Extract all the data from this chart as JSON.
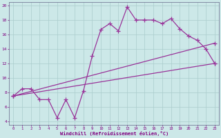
{
  "xlabel": "Windchill (Refroidissement éolien,°C)",
  "bg_color": "#cce8e8",
  "grid_color": "#aacccc",
  "line_color": "#993399",
  "xlim": [
    -0.5,
    23.5
  ],
  "ylim": [
    3.5,
    20.5
  ],
  "xticks": [
    0,
    1,
    2,
    3,
    4,
    5,
    6,
    7,
    8,
    9,
    10,
    11,
    12,
    13,
    14,
    15,
    16,
    17,
    18,
    19,
    20,
    21,
    22,
    23
  ],
  "yticks": [
    4,
    6,
    8,
    10,
    12,
    14,
    16,
    18,
    20
  ],
  "line1_x": [
    0,
    1,
    2,
    3,
    4,
    5,
    6,
    7,
    8,
    9,
    10,
    11,
    12,
    13,
    14,
    15,
    16,
    17,
    18,
    19,
    20,
    21,
    22,
    23
  ],
  "line1_y": [
    7.5,
    8.5,
    8.5,
    7.0,
    7.0,
    4.5,
    7.0,
    4.5,
    8.2,
    13.0,
    16.7,
    17.5,
    16.5,
    19.8,
    18.0,
    18.0,
    18.0,
    17.5,
    18.2,
    16.8,
    15.8,
    15.2,
    14.0,
    12.0
  ],
  "line2_x": [
    0,
    23
  ],
  "line2_y": [
    7.5,
    14.8
  ],
  "line3_x": [
    0,
    23
  ],
  "line3_y": [
    7.5,
    12.0
  ],
  "figsize": [
    3.2,
    2.0
  ],
  "dpi": 100
}
